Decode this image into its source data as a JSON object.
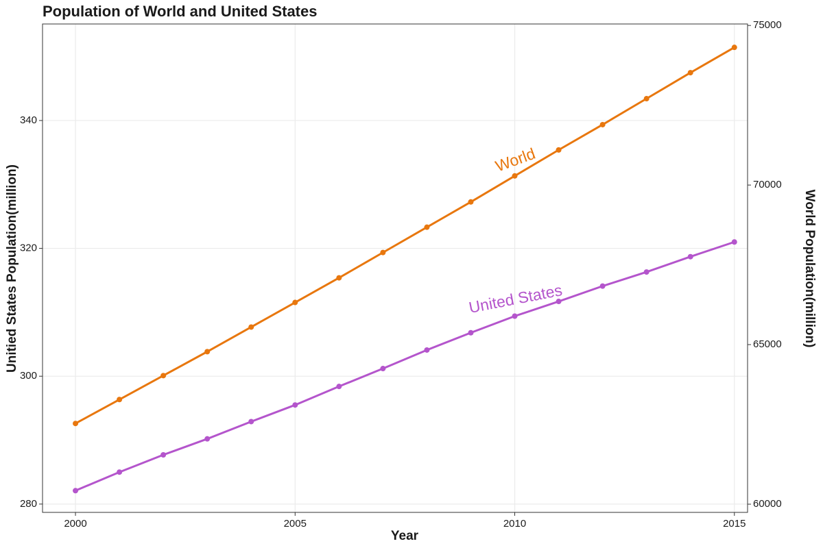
{
  "chart_data": {
    "type": "line",
    "title": "Population of World and United States",
    "x_label": "Year",
    "y_label": "Unitied States Population(million)",
    "y2_label": "World Population(million)",
    "x": [
      2000,
      2001,
      2002,
      2003,
      2004,
      2005,
      2006,
      2007,
      2008,
      2009,
      2010,
      2011,
      2012,
      2013,
      2014,
      2015
    ],
    "series": [
      {
        "name": "United States",
        "color": "#b455cc",
        "axis": "y",
        "values": [
          282.1,
          285.0,
          287.7,
          290.2,
          292.9,
          295.5,
          298.4,
          301.2,
          304.1,
          306.8,
          309.4,
          311.7,
          314.1,
          316.3,
          318.7,
          321.0
        ]
      },
      {
        "name": "World",
        "color": "#e8770e",
        "axis": "y2",
        "values": [
          62529,
          63279,
          64029,
          64779,
          65550,
          66321,
          67093,
          67886,
          68679,
          69471,
          70286,
          71100,
          71893,
          72707,
          73521,
          74314
        ]
      }
    ],
    "xlim": [
      1999.25,
      2015.3
    ],
    "xticks": [
      2000,
      2005,
      2010,
      2015
    ],
    "ylim": [
      278.7,
      355.1
    ],
    "yticks": [
      280,
      300,
      320,
      340
    ],
    "y2lim": [
      59743,
      75047
    ],
    "y2ticks": [
      60000,
      65000,
      70000,
      75000
    ],
    "grid": true
  }
}
